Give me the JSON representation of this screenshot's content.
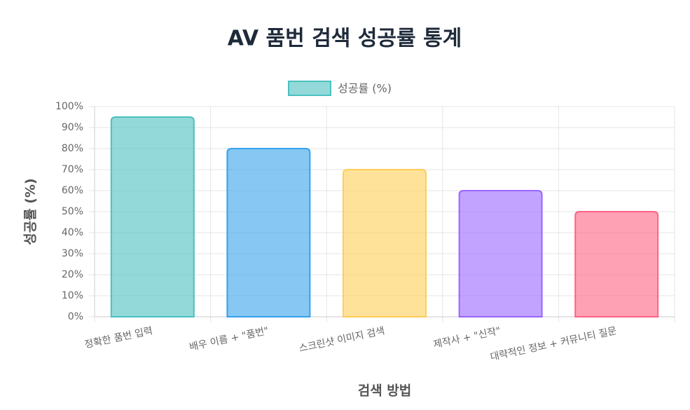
{
  "chart_data": {
    "type": "bar",
    "title": "AV 품번 검색 성공률 통계",
    "x_label": "검색 방법",
    "y_label": "성공률 (%)",
    "categories": [
      "정확한 품번 입력",
      "배우 이름 + \"품번\"",
      "스크린샷 이미지 검색",
      "제작사 + \"신작\"",
      "대략적인 정보 + 커뮤니티 질문"
    ],
    "series": [
      {
        "name": "성공률 (%)",
        "colors": [
          "rgba(75,192,192,0.6)",
          "rgba(54,162,235,0.6)",
          "rgba(255,206,86,0.6)",
          "rgba(153,102,255,0.6)",
          "rgba(255,99,132,0.6)"
        ],
        "border_colors": [
          "rgb(75,192,192)",
          "rgb(54,162,235)",
          "rgb(255,206,86)",
          "rgb(153,102,255)",
          "rgb(255,99,132)"
        ],
        "values": [
          95,
          80,
          70,
          60,
          50
        ]
      }
    ],
    "ylim": [
      0,
      100
    ],
    "yticks": [
      {
        "value": 0,
        "label": "0%"
      },
      {
        "value": 10,
        "label": "10%"
      },
      {
        "value": 20,
        "label": "20%"
      },
      {
        "value": 30,
        "label": "30%"
      },
      {
        "value": 40,
        "label": "40%"
      },
      {
        "value": 50,
        "label": "50%"
      },
      {
        "value": 60,
        "label": "60%"
      },
      {
        "value": 70,
        "label": "70%"
      },
      {
        "value": 80,
        "label": "80%"
      },
      {
        "value": 90,
        "label": "90%"
      },
      {
        "value": 100,
        "label": "100%"
      }
    ],
    "grid": true,
    "legend": "top"
  }
}
